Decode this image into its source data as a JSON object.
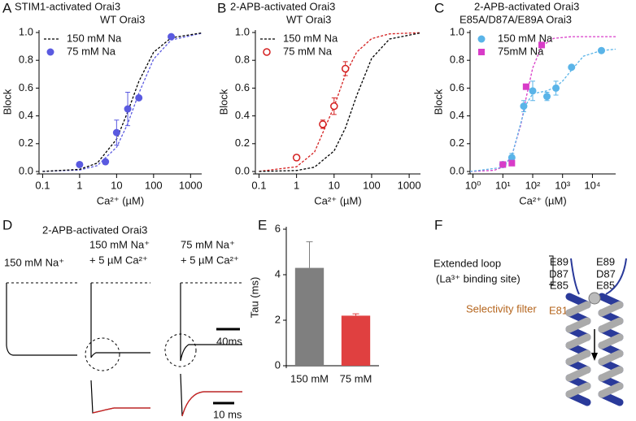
{
  "panel_labels": [
    "A",
    "B",
    "C",
    "D",
    "E",
    "F"
  ],
  "chart_data": [
    {
      "type": "scatter-fit",
      "title": "STIM1-activated Orai3",
      "subtitle": "WT Orai3",
      "x_label": "Ca²⁺ (µM)",
      "y_label": "Block",
      "log_x": true,
      "legend": "upper left",
      "xlim": [
        0.08,
        2000
      ],
      "xticks": [
        0.1,
        1,
        10,
        100,
        1000
      ],
      "ylim": [
        0,
        1
      ],
      "yticks": [
        {
          "value": 0,
          "label": "0.0"
        },
        0.2,
        0.4,
        0.6,
        0.8,
        {
          "value": 1,
          "label": "1.0"
        }
      ],
      "series": [
        {
          "kind": "line",
          "color": "#5a5ae0",
          "x": [
            0.1,
            1,
            3,
            10,
            20,
            40,
            100,
            300,
            2000
          ],
          "values": [
            0.0005,
            0.0105,
            0.042,
            0.175,
            0.343,
            0.562,
            0.809,
            0.946,
            0.995
          ]
        },
        {
          "kind": "line",
          "name": "150 mM Na",
          "color": "#000000",
          "x": [
            0.1,
            1,
            3,
            10,
            20,
            40,
            100,
            300,
            2000
          ],
          "values": [
            0.0008,
            0.015,
            0.06,
            0.233,
            0.428,
            0.648,
            0.858,
            0.962,
            0.997
          ]
        },
        {
          "kind": "points",
          "marker": "filled-circle",
          "name": "75 mM Na",
          "color": "#5a5ae0",
          "x": [
            1,
            5,
            10,
            20,
            40,
            300
          ],
          "values": [
            0.05,
            0.07,
            0.28,
            0.45,
            0.53,
            0.97
          ],
          "errors": [
            null,
            null,
            0.09,
            0.12,
            null,
            null
          ]
        }
      ]
    },
    {
      "type": "scatter-fit",
      "title": "2-APB-activated Orai3",
      "subtitle": "WT Orai3",
      "x_label": "Ca²⁺ (µM)",
      "y_label": "Block",
      "log_x": true,
      "legend": "upper left",
      "xlim": [
        0.08,
        2000
      ],
      "xticks": [
        0.1,
        1,
        10,
        100,
        1000
      ],
      "ylim": [
        0,
        1
      ],
      "yticks": [
        {
          "value": 0,
          "label": "0.0"
        },
        0.2,
        0.4,
        0.6,
        0.8,
        {
          "value": 1,
          "label": "1.0"
        }
      ],
      "series": [
        {
          "kind": "line",
          "color": "#d42020",
          "x": [
            0.1,
            1,
            3,
            10,
            20,
            40,
            100,
            300,
            2000
          ],
          "values": [
            0.0014,
            0.034,
            0.14,
            0.467,
            0.698,
            0.859,
            0.956,
            0.99,
            0.999
          ]
        },
        {
          "kind": "line",
          "name": "150 mM Na",
          "color": "#000000",
          "x": [
            0.1,
            1,
            3,
            10,
            20,
            40,
            100,
            300,
            2000
          ],
          "values": [
            0.0003,
            0.0068,
            0.031,
            0.148,
            0.313,
            0.546,
            0.813,
            0.953,
            0.997
          ]
        },
        {
          "kind": "points",
          "marker": "open-circle",
          "name": "75 mM Na",
          "color": "#d42020",
          "x": [
            1,
            5,
            10,
            20
          ],
          "values": [
            0.1,
            0.34,
            0.47,
            0.74
          ],
          "errors": [
            0.02,
            0.03,
            0.06,
            0.05
          ]
        }
      ]
    },
    {
      "type": "scatter-fit",
      "title": "2-APB-activated Orai3",
      "subtitle": "E85A/D87A/E89A Orai3",
      "x_label": "Ca²⁺ (µM)",
      "y_label": "Block",
      "log_x": true,
      "legend": "upper left",
      "xlim": [
        0.8,
        60000
      ],
      "xticks": [
        {
          "value": 1,
          "label": "10⁰"
        },
        {
          "value": 10,
          "label": "10¹"
        },
        {
          "value": 100,
          "label": "10²"
        },
        {
          "value": 1000,
          "label": "10³"
        },
        {
          "value": 10000,
          "label": "10⁴"
        }
      ],
      "ylim": [
        0,
        1
      ],
      "yticks": [
        {
          "value": 0,
          "label": "0.0"
        },
        0.2,
        0.4,
        0.6,
        0.8,
        {
          "value": 1,
          "label": "1.0"
        }
      ],
      "series": [
        {
          "kind": "line",
          "color": "#d83cc8",
          "x": [
            0.8,
            5,
            10,
            20,
            40,
            60,
            100,
            200,
            500,
            2000,
            60000
          ],
          "values": [
            0,
            0.008,
            0.031,
            0.113,
            0.336,
            0.527,
            0.745,
            0.902,
            0.958,
            0.97,
            0.97
          ]
        },
        {
          "kind": "line",
          "color": "#5ab4e8",
          "x": [
            0.8,
            10,
            20,
            40,
            60,
            100,
            300,
            600,
            1000,
            2000,
            5000,
            20000,
            60000
          ],
          "values": [
            0,
            0.03,
            0.11,
            0.35,
            0.48,
            0.56,
            0.58,
            0.61,
            0.65,
            0.73,
            0.83,
            0.87,
            0.88
          ]
        },
        {
          "kind": "points",
          "marker": "filled-circle",
          "name": "150 mM Na",
          "color": "#5ab4e8",
          "x": [
            10,
            20,
            50,
            100,
            300,
            600,
            2000,
            20000
          ],
          "values": [
            0.05,
            0.1,
            0.47,
            0.58,
            0.54,
            0.6,
            0.75,
            0.87
          ],
          "errors": [
            null,
            0.03,
            0.04,
            0.07,
            0.03,
            0.05,
            null,
            null
          ]
        },
        {
          "kind": "points",
          "marker": "square",
          "name": "75mM Na",
          "color": "#d83cc8",
          "x": [
            10,
            20,
            60,
            200
          ],
          "values": [
            0.05,
            0.06,
            0.61,
            0.91
          ],
          "errors": [
            null,
            null,
            null,
            null
          ]
        }
      ]
    },
    {
      "type": "bar",
      "y_label": "Tau (ms)",
      "categories": [
        "150 mM",
        "75 mM"
      ],
      "values": [
        4.3,
        2.2
      ],
      "errors": [
        1.15,
        0.08
      ],
      "colors": [
        "#7f7f7f",
        "#e04040"
      ],
      "ylim": [
        0,
        6
      ],
      "yticks": [
        0,
        2,
        4,
        6
      ]
    }
  ],
  "traces": {
    "title": "2-APB-activated Orai3",
    "conditions": [
      [
        "150 mM Na⁺"
      ],
      [
        "150 mM Na⁺",
        "+ 5 µM Ca²⁺"
      ],
      [
        "75 mM Na⁺",
        "+ 5 µM Ca²⁺"
      ]
    ],
    "scale_bars": [
      "40ms",
      "10 ms"
    ]
  },
  "diagram": {
    "loop_label": "Extended loop",
    "site_label": "(La³⁺ binding site)",
    "left_residues": [
      "E89",
      "D87",
      "E85"
    ],
    "right_residues": [
      "E89",
      "D87",
      "E85"
    ],
    "filter_label": "Selectivity filter",
    "residue": "E81"
  }
}
